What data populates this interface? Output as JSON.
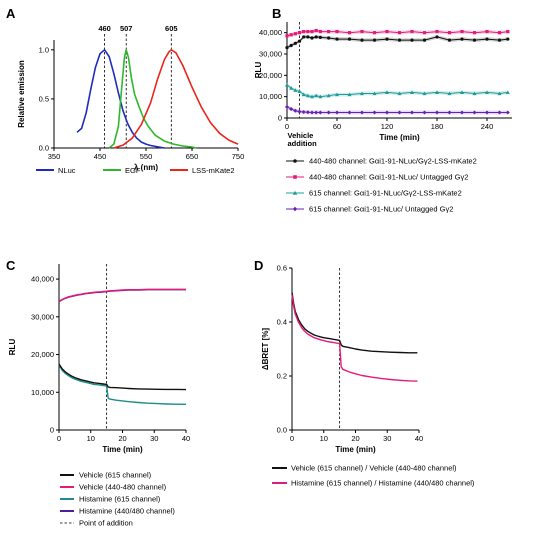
{
  "panels": {
    "A": {
      "label": "A"
    },
    "B": {
      "label": "B"
    },
    "C": {
      "label": "C"
    },
    "D": {
      "label": "D"
    }
  },
  "chart_data": [
    {
      "id": "A",
      "type": "line",
      "ylabel": "Relative emission",
      "xlabel": "λ (nm)",
      "xlim": [
        350,
        750
      ],
      "ylim": [
        0,
        1.1
      ],
      "xticks": [
        "350",
        "450",
        "550",
        "650",
        "750"
      ],
      "yticks": [
        "0.0",
        "0.5",
        "1.0"
      ],
      "peak_labels": [
        "460",
        "507",
        "605"
      ],
      "peaks": [
        460,
        507,
        605
      ],
      "series": [
        {
          "name": "NLuc",
          "color": "#1f2bbd",
          "x": [
            400,
            410,
            420,
            430,
            440,
            450,
            460,
            470,
            480,
            490,
            500,
            510,
            520,
            530,
            540,
            550,
            560,
            575,
            590
          ],
          "y": [
            0.16,
            0.2,
            0.36,
            0.6,
            0.82,
            0.96,
            1.0,
            0.93,
            0.76,
            0.56,
            0.38,
            0.25,
            0.16,
            0.1,
            0.06,
            0.04,
            0.025,
            0.012,
            0.0
          ]
        },
        {
          "name": "EGF",
          "color": "#2db82d",
          "x": [
            470,
            480,
            490,
            497,
            503,
            507,
            512,
            518,
            525,
            535,
            545,
            555,
            570,
            590,
            610,
            630,
            650,
            660
          ],
          "y": [
            0.0,
            0.04,
            0.22,
            0.6,
            0.92,
            1.0,
            0.92,
            0.72,
            0.55,
            0.42,
            0.3,
            0.22,
            0.13,
            0.07,
            0.04,
            0.02,
            0.01,
            0.0
          ]
        },
        {
          "name": "LSS-mKate2",
          "color": "#e8261c",
          "x": [
            480,
            500,
            520,
            540,
            560,
            575,
            590,
            600,
            605,
            615,
            630,
            650,
            670,
            690,
            710,
            730,
            750
          ],
          "y": [
            0.0,
            0.03,
            0.1,
            0.24,
            0.46,
            0.7,
            0.9,
            0.98,
            1.0,
            0.97,
            0.84,
            0.62,
            0.42,
            0.26,
            0.15,
            0.08,
            0.04
          ]
        }
      ]
    },
    {
      "id": "B",
      "type": "line",
      "ylabel": "RLU",
      "xlabel": "Time (min)",
      "xlim": [
        0,
        270
      ],
      "ylim": [
        0,
        45000
      ],
      "xticks": [
        "0",
        "60",
        "120",
        "180",
        "240"
      ],
      "yticks": [
        "0",
        "10,000",
        "20,000",
        "30,000",
        "40,000"
      ],
      "addition_label": "Vehicle addition",
      "addition_x": 15,
      "series": [
        {
          "name": "440-480 channel: Gαi1-91-NLuc/Gγ2-LSS-mKate2",
          "color": "#111111",
          "marker": "circle",
          "x": [
            0,
            5,
            10,
            15,
            20,
            25,
            30,
            35,
            40,
            50,
            60,
            75,
            90,
            105,
            120,
            135,
            150,
            165,
            180,
            195,
            210,
            225,
            240,
            255,
            265
          ],
          "y": [
            33000,
            34000,
            35000,
            36000,
            38000,
            38000,
            37500,
            38000,
            37800,
            37500,
            37000,
            37000,
            36500,
            36500,
            37000,
            36500,
            36500,
            36500,
            38000,
            36500,
            37000,
            36500,
            37000,
            36500,
            37000
          ]
        },
        {
          "name": "440-480 channel: Gαi1-91-NLuc/ Untagged Gγ2",
          "color": "#e6197a",
          "marker": "square",
          "x": [
            0,
            5,
            10,
            15,
            20,
            25,
            30,
            35,
            40,
            50,
            60,
            75,
            90,
            105,
            120,
            135,
            150,
            165,
            180,
            195,
            210,
            225,
            240,
            255,
            265
          ],
          "y": [
            38500,
            39000,
            39500,
            40000,
            40500,
            40500,
            40500,
            41000,
            40500,
            40500,
            40500,
            40000,
            40500,
            40000,
            40500,
            40000,
            40500,
            40000,
            40500,
            40000,
            40500,
            40000,
            40500,
            40000,
            40500
          ]
        },
        {
          "name": "615 channel: Gαi1-91-NLuc/Gγ2-LSS-mKate2",
          "color": "#1e9c9a",
          "marker": "triangle",
          "x": [
            0,
            5,
            10,
            15,
            20,
            25,
            30,
            35,
            40,
            50,
            60,
            75,
            90,
            105,
            120,
            135,
            150,
            165,
            180,
            195,
            210,
            225,
            240,
            255,
            265
          ],
          "y": [
            15500,
            14000,
            13000,
            12500,
            11000,
            10500,
            10000,
            10500,
            10000,
            10500,
            11000,
            11000,
            11500,
            11500,
            12000,
            11500,
            12000,
            11500,
            12000,
            11500,
            12000,
            11500,
            12000,
            11500,
            12000
          ]
        },
        {
          "name": "615 channel: Gαi1-91-NLuc/ Untagged Gγ2",
          "color": "#6a1fb5",
          "marker": "diamond",
          "x": [
            0,
            5,
            10,
            15,
            20,
            25,
            30,
            35,
            40,
            50,
            60,
            75,
            90,
            105,
            120,
            135,
            150,
            165,
            180,
            195,
            210,
            225,
            240,
            255,
            265
          ],
          "y": [
            5200,
            4200,
            3400,
            3000,
            2800,
            2700,
            2600,
            2600,
            2600,
            2600,
            2600,
            2600,
            2600,
            2600,
            2600,
            2600,
            2600,
            2600,
            2600,
            2600,
            2600,
            2600,
            2600,
            2600,
            2600
          ]
        }
      ]
    },
    {
      "id": "C",
      "type": "line",
      "ylabel": "RLU",
      "xlabel": "Time (min)",
      "xlim": [
        0,
        40
      ],
      "ylim": [
        0,
        44000
      ],
      "xticks": [
        "0",
        "10",
        "20",
        "30",
        "40"
      ],
      "yticks": [
        "0",
        "10,000",
        "20,000",
        "30,000",
        "40,000"
      ],
      "addition_x": 15,
      "series": [
        {
          "name": "Vehicle (615 channel)",
          "color": "#111111",
          "x": [
            0,
            1,
            2,
            3,
            4,
            5,
            6,
            7,
            8,
            9,
            10,
            11,
            12,
            13,
            14,
            15,
            15.5,
            16,
            18,
            20,
            22,
            25,
            28,
            31,
            34,
            37,
            40
          ],
          "y": [
            17500,
            16200,
            15400,
            14800,
            14300,
            13900,
            13600,
            13300,
            13100,
            12900,
            12700,
            12500,
            12400,
            12300,
            12200,
            12100,
            11400,
            11300,
            11200,
            11100,
            11000,
            10900,
            10850,
            10800,
            10750,
            10750,
            10700
          ]
        },
        {
          "name": "Vehicle (440-480 channel)",
          "color": "#e6197a",
          "x": [
            0,
            1,
            2,
            3,
            4,
            5,
            6,
            7,
            8,
            9,
            10,
            11,
            12,
            13,
            14,
            15,
            16,
            18,
            20,
            22,
            25,
            28,
            31,
            34,
            37,
            40
          ],
          "y": [
            34200,
            34600,
            35000,
            35300,
            35500,
            35700,
            35900,
            36000,
            36200,
            36300,
            36400,
            36500,
            36600,
            36600,
            36700,
            36800,
            36900,
            37000,
            37100,
            37200,
            37200,
            37300,
            37300,
            37300,
            37300,
            37300
          ]
        },
        {
          "name": "Histamine (615 channel)",
          "color": "#1e8c88",
          "x": [
            0,
            1,
            2,
            3,
            4,
            5,
            6,
            7,
            8,
            9,
            10,
            11,
            12,
            13,
            14,
            15,
            15.5,
            16,
            18,
            20,
            22,
            25,
            28,
            31,
            34,
            37,
            40
          ],
          "y": [
            17300,
            15800,
            15000,
            14400,
            13900,
            13500,
            13200,
            12900,
            12700,
            12500,
            12300,
            12100,
            12000,
            11900,
            11800,
            11700,
            8400,
            8200,
            7900,
            7700,
            7500,
            7300,
            7100,
            7000,
            6900,
            6850,
            6800
          ]
        },
        {
          "name": "Histamine (440/480 channel)",
          "color": "#4b1e9e",
          "x": [
            0,
            1,
            2,
            3,
            4,
            5,
            6,
            7,
            8,
            9,
            10,
            11,
            12,
            13,
            14,
            15,
            16,
            18,
            20,
            22,
            25,
            28,
            31,
            34,
            37,
            40
          ],
          "y": [
            34000,
            34500,
            34900,
            35200,
            35400,
            35600,
            35800,
            35900,
            36100,
            36200,
            36300,
            36400,
            36500,
            36500,
            36600,
            36700,
            36800,
            36900,
            37000,
            37100,
            37100,
            37200,
            37200,
            37200,
            37200,
            37200
          ]
        }
      ],
      "legend_extra": "Point of addition"
    },
    {
      "id": "D",
      "type": "line",
      "ylabel": "ΔBRET [%]",
      "xlabel": "Time (min)",
      "xlim": [
        0,
        40
      ],
      "ylim": [
        0.0,
        0.6
      ],
      "xticks": [
        "0",
        "10",
        "20",
        "30",
        "40"
      ],
      "yticks": [
        "0.0",
        "0.2",
        "0.4",
        "0.6"
      ],
      "addition_x": 15,
      "series": [
        {
          "name": "Vehicle (615 channel) / Vehicle (440-480 channel)",
          "color": "#111111",
          "x": [
            0,
            0.5,
            1,
            2,
            3,
            4,
            5,
            6,
            7,
            8,
            9,
            10,
            11,
            12,
            13,
            14,
            15,
            15.5,
            16,
            18,
            20,
            22,
            25,
            28,
            31,
            34,
            37,
            39.5
          ],
          "y": [
            0.51,
            0.47,
            0.44,
            0.41,
            0.39,
            0.375,
            0.365,
            0.358,
            0.352,
            0.348,
            0.345,
            0.342,
            0.34,
            0.338,
            0.336,
            0.334,
            0.332,
            0.315,
            0.31,
            0.305,
            0.3,
            0.296,
            0.292,
            0.29,
            0.288,
            0.287,
            0.286,
            0.286
          ]
        },
        {
          "name": "Histamine (615 channel) / Histamine (440/480 channel)",
          "color": "#e6197a",
          "x": [
            0,
            0.5,
            1,
            2,
            3,
            4,
            5,
            6,
            7,
            8,
            9,
            10,
            11,
            12,
            13,
            14,
            15,
            15.5,
            16,
            18,
            20,
            22,
            25,
            28,
            31,
            34,
            37,
            39.5
          ],
          "y": [
            0.5,
            0.46,
            0.43,
            0.4,
            0.38,
            0.365,
            0.355,
            0.348,
            0.342,
            0.338,
            0.334,
            0.331,
            0.328,
            0.326,
            0.324,
            0.322,
            0.32,
            0.235,
            0.225,
            0.215,
            0.208,
            0.202,
            0.196,
            0.191,
            0.187,
            0.184,
            0.182,
            0.181
          ]
        }
      ]
    }
  ]
}
